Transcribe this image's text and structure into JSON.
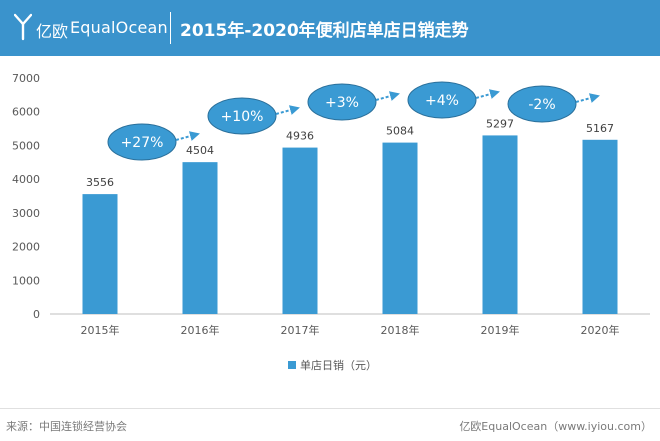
{
  "header": {
    "brand_cn": "亿欧",
    "brand_en": "EqualOcean",
    "title": "2015年-2020年便利店单店日销走势",
    "bg_color": "#3a93cc"
  },
  "chart_data": {
    "type": "bar",
    "title": "2015年-2020年便利店单店日销走势",
    "categories": [
      "2015年",
      "2016年",
      "2017年",
      "2018年",
      "2019年",
      "2020年"
    ],
    "series": [
      {
        "name": "单店日销（元）",
        "values": [
          3556,
          4504,
          4936,
          5084,
          5297,
          5167
        ],
        "color": "#3a9ad3"
      }
    ],
    "data_labels": [
      "3556",
      "4504",
      "4936",
      "5084",
      "5297",
      "5167"
    ],
    "y_ticks": [
      "0",
      "1000",
      "2000",
      "3000",
      "4000",
      "5000",
      "6000",
      "7000"
    ],
    "ylim": [
      0,
      7000
    ],
    "growth_annotations": [
      "+27%",
      "+10%",
      "+3%",
      "+4%",
      "-2%"
    ],
    "growth_color": "#3a9ad3",
    "legend_position": "bottom",
    "grid": false
  },
  "footer": {
    "source": "来源：中国连锁经营协会",
    "brand": "亿欧EqualOcean（www.iyiou.com）"
  }
}
